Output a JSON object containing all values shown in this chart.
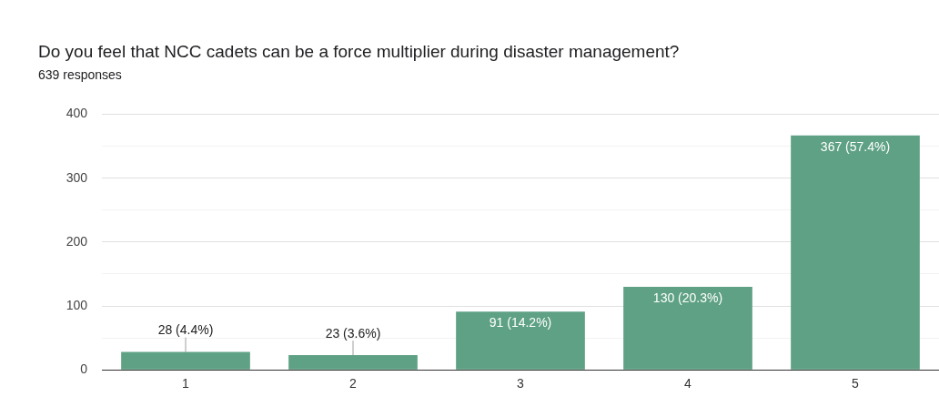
{
  "chart_data": {
    "type": "bar",
    "title": "Do you feel that NCC cadets can be a force multiplier during disaster management?",
    "subtitle": "639 responses",
    "categories": [
      "1",
      "2",
      "3",
      "4",
      "5"
    ],
    "values": [
      28,
      23,
      91,
      130,
      367
    ],
    "value_labels": [
      "28 (4.4%)",
      "23 (3.6%)",
      "91 (14.2%)",
      "130 (20.3%)",
      "367 (57.4%)"
    ],
    "color": "#5ea184",
    "ylim": [
      0,
      400
    ],
    "yticks": [
      0,
      {
        "value": 50,
        "label": null
      },
      100,
      {
        "value": 150,
        "label": null
      },
      200,
      {
        "value": 250,
        "label": null
      },
      300,
      {
        "value": 350,
        "label": null
      },
      400
    ],
    "grid": "y",
    "legend": false
  }
}
